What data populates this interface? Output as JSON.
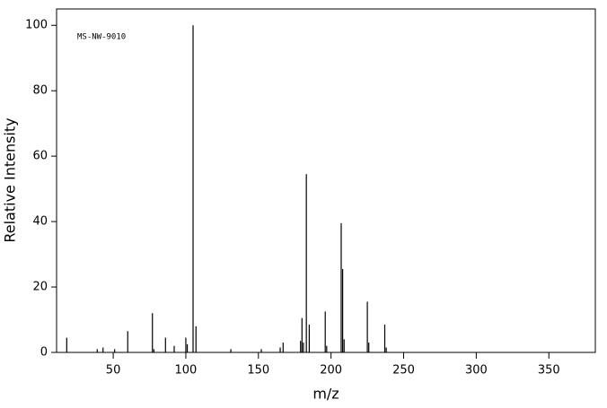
{
  "chart_data": {
    "type": "stem",
    "annotation": "MS-NW-9010",
    "x_label": "m/z",
    "y_label": "Relative Intensity",
    "x": [
      18,
      39,
      43,
      51,
      60,
      77,
      78,
      86,
      92,
      100,
      101,
      105,
      107,
      131,
      152,
      165,
      167,
      179,
      180,
      181,
      183,
      185,
      196,
      197,
      207,
      208,
      209,
      225,
      226,
      237,
      238
    ],
    "values": [
      4.5,
      1,
      1.5,
      1,
      6.5,
      12,
      1,
      4.5,
      2,
      4.5,
      2.5,
      100,
      8,
      1,
      1,
      1.5,
      3,
      3.5,
      10.5,
      3,
      54.5,
      8.5,
      12.5,
      2,
      39.5,
      25.5,
      4,
      15.5,
      3,
      8.5,
      1.5
    ],
    "color": "#000000",
    "xlim": [
      11,
      382
    ],
    "xticks": [
      50,
      100,
      150,
      200,
      250,
      300,
      350
    ],
    "ylim": [
      0,
      105
    ],
    "yticks": [
      0,
      20,
      40,
      60,
      80,
      100
    ]
  }
}
